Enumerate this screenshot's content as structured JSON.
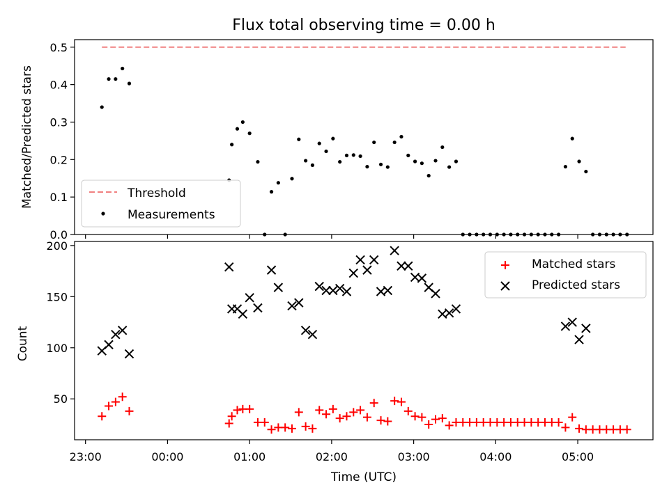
{
  "chart_data": [
    {
      "type": "scatter",
      "title": "Flux total observing time = 0.00 h",
      "xlabel": "",
      "ylabel": "Matched/Predicted stars",
      "ylim": [
        0,
        0.52
      ],
      "xlim": [
        "22:52",
        "05:55"
      ],
      "yticks": [
        "0.0",
        "0.1",
        "0.2",
        "0.3",
        "0.4",
        "0.5"
      ],
      "legend": {
        "placement": "lower-left",
        "entries": [
          "Threshold",
          "Measurements"
        ]
      },
      "threshold": {
        "name": "Threshold",
        "value": 0.5,
        "x_range": [
          "23:12",
          "05:35"
        ],
        "color": "#f08080",
        "style": "dashed"
      },
      "series": [
        {
          "name": "Measurements",
          "color": "#000000",
          "marker": "dot",
          "points": [
            [
              "23:12",
              0.34
            ],
            [
              "23:17",
              0.415
            ],
            [
              "23:22",
              0.415
            ],
            [
              "23:27",
              0.443
            ],
            [
              "23:32",
              0.403
            ],
            [
              "00:45",
              0.145
            ],
            [
              "00:47",
              0.24
            ],
            [
              "00:51",
              0.282
            ],
            [
              "00:55",
              0.3
            ],
            [
              "01:00",
              0.27
            ],
            [
              "01:06",
              0.194
            ],
            [
              "01:11",
              0.0
            ],
            [
              "01:16",
              0.114
            ],
            [
              "01:21",
              0.138
            ],
            [
              "01:26",
              0.0
            ],
            [
              "01:31",
              0.149
            ],
            [
              "01:36",
              0.254
            ],
            [
              "01:41",
              0.197
            ],
            [
              "01:46",
              0.185
            ],
            [
              "01:51",
              0.243
            ],
            [
              "01:56",
              0.222
            ],
            [
              "02:01",
              0.256
            ],
            [
              "02:06",
              0.194
            ],
            [
              "02:11",
              0.211
            ],
            [
              "02:16",
              0.212
            ],
            [
              "02:21",
              0.209
            ],
            [
              "02:26",
              0.181
            ],
            [
              "02:31",
              0.246
            ],
            [
              "02:36",
              0.187
            ],
            [
              "02:41",
              0.18
            ],
            [
              "02:46",
              0.246
            ],
            [
              "02:51",
              0.261
            ],
            [
              "02:56",
              0.211
            ],
            [
              "03:01",
              0.195
            ],
            [
              "03:06",
              0.19
            ],
            [
              "03:11",
              0.157
            ],
            [
              "03:16",
              0.197
            ],
            [
              "03:21",
              0.233
            ],
            [
              "03:26",
              0.18
            ],
            [
              "03:31",
              0.195
            ],
            [
              "03:36",
              0.0
            ],
            [
              "03:41",
              0.0
            ],
            [
              "03:46",
              0.0
            ],
            [
              "03:51",
              0.0
            ],
            [
              "03:56",
              0.0
            ],
            [
              "04:01",
              0.0
            ],
            [
              "04:06",
              0.0
            ],
            [
              "04:11",
              0.0
            ],
            [
              "04:16",
              0.0
            ],
            [
              "04:21",
              0.0
            ],
            [
              "04:26",
              0.0
            ],
            [
              "04:31",
              0.0
            ],
            [
              "04:36",
              0.0
            ],
            [
              "04:41",
              0.0
            ],
            [
              "04:46",
              0.0
            ],
            [
              "04:51",
              0.181
            ],
            [
              "04:56",
              0.256
            ],
            [
              "05:01",
              0.195
            ],
            [
              "05:06",
              0.168
            ],
            [
              "05:11",
              0.0
            ],
            [
              "05:16",
              0.0
            ],
            [
              "05:21",
              0.0
            ],
            [
              "05:26",
              0.0
            ],
            [
              "05:31",
              0.0
            ],
            [
              "05:36",
              0.0
            ]
          ]
        }
      ]
    },
    {
      "type": "scatter",
      "title": "",
      "xlabel": "Time (UTC)",
      "ylabel": "Count",
      "ylim": [
        10,
        204
      ],
      "xlim": [
        "22:52",
        "05:55"
      ],
      "yticks": [
        "50",
        "100",
        "150",
        "200"
      ],
      "xticks": [
        "23:00",
        "00:00",
        "01:00",
        "02:00",
        "03:00",
        "04:00",
        "05:00"
      ],
      "legend": {
        "placement": "upper-right",
        "entries": [
          "Matched stars",
          "Predicted stars"
        ]
      },
      "series": [
        {
          "name": "Matched stars",
          "color": "#ff0000",
          "marker": "plus",
          "points": [
            [
              "23:12",
              33
            ],
            [
              "23:17",
              43
            ],
            [
              "23:22",
              47
            ],
            [
              "23:27",
              52
            ],
            [
              "23:32",
              38
            ],
            [
              "00:45",
              26
            ],
            [
              "00:47",
              33
            ],
            [
              "00:51",
              39
            ],
            [
              "00:55",
              40
            ],
            [
              "01:00",
              40
            ],
            [
              "01:06",
              27
            ],
            [
              "01:11",
              27
            ],
            [
              "01:16",
              20
            ],
            [
              "01:21",
              22
            ],
            [
              "01:26",
              22
            ],
            [
              "01:31",
              21
            ],
            [
              "01:36",
              37
            ],
            [
              "01:41",
              23
            ],
            [
              "01:46",
              21
            ],
            [
              "01:51",
              39
            ],
            [
              "01:56",
              35
            ],
            [
              "02:01",
              40
            ],
            [
              "02:06",
              31
            ],
            [
              "02:11",
              33
            ],
            [
              "02:16",
              37
            ],
            [
              "02:21",
              39
            ],
            [
              "02:26",
              32
            ],
            [
              "02:31",
              46
            ],
            [
              "02:36",
              29
            ],
            [
              "02:41",
              28
            ],
            [
              "02:46",
              48
            ],
            [
              "02:51",
              47
            ],
            [
              "02:56",
              38
            ],
            [
              "03:01",
              33
            ],
            [
              "03:06",
              32
            ],
            [
              "03:11",
              25
            ],
            [
              "03:16",
              30
            ],
            [
              "03:21",
              31
            ],
            [
              "03:26",
              24
            ],
            [
              "03:31",
              27
            ],
            [
              "03:36",
              27
            ],
            [
              "03:41",
              27
            ],
            [
              "03:46",
              27
            ],
            [
              "03:51",
              27
            ],
            [
              "03:56",
              27
            ],
            [
              "04:01",
              27
            ],
            [
              "04:06",
              27
            ],
            [
              "04:11",
              27
            ],
            [
              "04:16",
              27
            ],
            [
              "04:21",
              27
            ],
            [
              "04:26",
              27
            ],
            [
              "04:31",
              27
            ],
            [
              "04:36",
              27
            ],
            [
              "04:41",
              27
            ],
            [
              "04:46",
              27
            ],
            [
              "04:51",
              22
            ],
            [
              "04:56",
              32
            ],
            [
              "05:01",
              21
            ],
            [
              "05:06",
              20
            ],
            [
              "05:11",
              20
            ],
            [
              "05:16",
              20
            ],
            [
              "05:21",
              20
            ],
            [
              "05:26",
              20
            ],
            [
              "05:31",
              20
            ],
            [
              "05:36",
              20
            ]
          ]
        },
        {
          "name": "Predicted stars",
          "color": "#000000",
          "marker": "x",
          "points": [
            [
              "23:12",
              97
            ],
            [
              "23:17",
              103
            ],
            [
              "23:22",
              113
            ],
            [
              "23:27",
              117
            ],
            [
              "23:32",
              94
            ],
            [
              "00:45",
              179
            ],
            [
              "00:47",
              138
            ],
            [
              "00:51",
              138
            ],
            [
              "00:55",
              133
            ],
            [
              "01:00",
              149
            ],
            [
              "01:06",
              139
            ],
            [
              "01:16",
              176
            ],
            [
              "01:21",
              159
            ],
            [
              "01:31",
              141
            ],
            [
              "01:36",
              144
            ],
            [
              "01:41",
              117
            ],
            [
              "01:46",
              113
            ],
            [
              "01:51",
              160
            ],
            [
              "01:56",
              156
            ],
            [
              "02:01",
              156
            ],
            [
              "02:06",
              158
            ],
            [
              "02:11",
              155
            ],
            [
              "02:16",
              173
            ],
            [
              "02:21",
              186
            ],
            [
              "02:26",
              176
            ],
            [
              "02:31",
              186
            ],
            [
              "02:36",
              155
            ],
            [
              "02:41",
              156
            ],
            [
              "02:46",
              195
            ],
            [
              "02:51",
              180
            ],
            [
              "02:56",
              180
            ],
            [
              "03:01",
              169
            ],
            [
              "03:06",
              168
            ],
            [
              "03:11",
              159
            ],
            [
              "03:16",
              153
            ],
            [
              "03:21",
              133
            ],
            [
              "03:26",
              134
            ],
            [
              "03:31",
              138
            ],
            [
              "04:51",
              121
            ],
            [
              "04:56",
              125
            ],
            [
              "05:01",
              108
            ],
            [
              "05:06",
              119
            ]
          ]
        }
      ]
    }
  ]
}
